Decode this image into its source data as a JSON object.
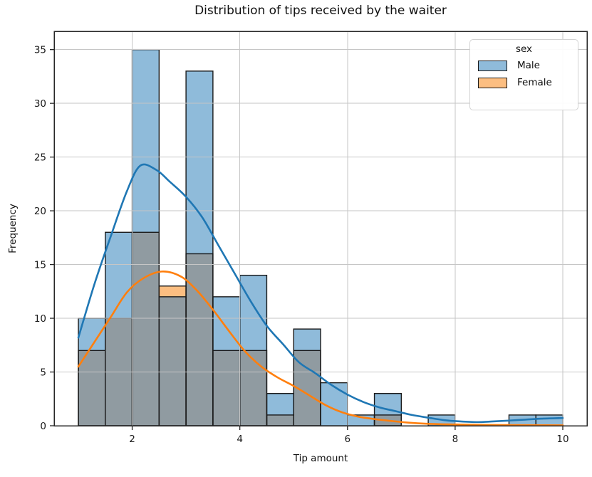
{
  "figure": {
    "title": "Distribution of tips received by the waiter"
  },
  "chart_data": {
    "type": "histogram",
    "title": "Distribution of tips received by the waiter",
    "xlabel": "Tip amount",
    "ylabel": "Frequency",
    "legend": {
      "title": "sex",
      "entries": [
        "Male",
        "Female"
      ]
    },
    "legend_position": "upper right",
    "grid": true,
    "xlim": [
      0.55,
      10.45
    ],
    "ylim": [
      0,
      36.7
    ],
    "xticks": [
      2,
      4,
      6,
      8,
      10
    ],
    "yticks": [
      0,
      5,
      10,
      15,
      20,
      25,
      30,
      35
    ],
    "bin_edges": [
      1.0,
      1.5,
      2.0,
      2.5,
      3.0,
      3.5,
      4.0,
      4.5,
      5.0,
      5.5,
      6.0,
      6.5,
      7.0,
      7.5,
      8.0,
      8.5,
      9.0,
      9.5,
      10.0
    ],
    "series": [
      {
        "name": "Male",
        "counts": [
          10,
          18,
          35,
          12,
          33,
          12,
          14,
          3,
          9,
          4,
          1,
          3,
          0,
          1,
          0,
          0,
          1,
          1
        ],
        "fill_color": "#8fbbda",
        "line_color": "#1f77b4",
        "kde_points": [
          [
            1.0,
            8.2
          ],
          [
            1.3,
            13.2
          ],
          [
            1.6,
            17.6
          ],
          [
            1.9,
            21.8
          ],
          [
            2.15,
            24.2
          ],
          [
            2.45,
            23.8
          ],
          [
            2.7,
            22.7
          ],
          [
            3.0,
            21.3
          ],
          [
            3.3,
            19.4
          ],
          [
            3.6,
            16.8
          ],
          [
            3.9,
            14.2
          ],
          [
            4.2,
            11.6
          ],
          [
            4.5,
            9.3
          ],
          [
            4.8,
            7.6
          ],
          [
            5.1,
            5.9
          ],
          [
            5.4,
            4.9
          ],
          [
            5.7,
            3.8
          ],
          [
            6.0,
            2.9
          ],
          [
            6.3,
            2.2
          ],
          [
            6.6,
            1.7
          ],
          [
            6.9,
            1.35
          ],
          [
            7.2,
            1.0
          ],
          [
            7.5,
            0.75
          ],
          [
            7.8,
            0.52
          ],
          [
            8.1,
            0.4
          ],
          [
            8.4,
            0.34
          ],
          [
            8.7,
            0.4
          ],
          [
            9.0,
            0.48
          ],
          [
            9.3,
            0.57
          ],
          [
            9.6,
            0.66
          ],
          [
            10.0,
            0.72
          ]
        ]
      },
      {
        "name": "Female",
        "counts": [
          7,
          10,
          18,
          13,
          16,
          7,
          7,
          1,
          7,
          0,
          0,
          1,
          0,
          0,
          0,
          0,
          0,
          0
        ],
        "fill_color": "#fcbe81",
        "line_color": "#ff7f0e",
        "kde_points": [
          [
            1.0,
            5.5
          ],
          [
            1.3,
            7.8
          ],
          [
            1.6,
            10.1
          ],
          [
            1.9,
            12.4
          ],
          [
            2.2,
            13.7
          ],
          [
            2.55,
            14.35
          ],
          [
            2.9,
            13.9
          ],
          [
            3.2,
            12.6
          ],
          [
            3.5,
            10.8
          ],
          [
            3.8,
            8.8
          ],
          [
            4.1,
            6.9
          ],
          [
            4.4,
            5.5
          ],
          [
            4.7,
            4.5
          ],
          [
            5.0,
            3.7
          ],
          [
            5.3,
            2.8
          ],
          [
            5.6,
            1.9
          ],
          [
            5.9,
            1.25
          ],
          [
            6.2,
            0.85
          ],
          [
            6.5,
            0.62
          ],
          [
            6.8,
            0.45
          ],
          [
            7.1,
            0.3
          ],
          [
            7.5,
            0.18
          ],
          [
            8.0,
            0.12
          ],
          [
            8.5,
            0.08
          ],
          [
            9.0,
            0.06
          ],
          [
            9.5,
            0.05
          ],
          [
            10.0,
            0.04
          ]
        ]
      }
    ],
    "overlap_color": "#909ba1",
    "style": {
      "grid_color": "#c6c6c6",
      "frame_color": "#262626",
      "bar_edge_color": "#1a1a1a",
      "text_color": "#1a1a1a"
    }
  }
}
